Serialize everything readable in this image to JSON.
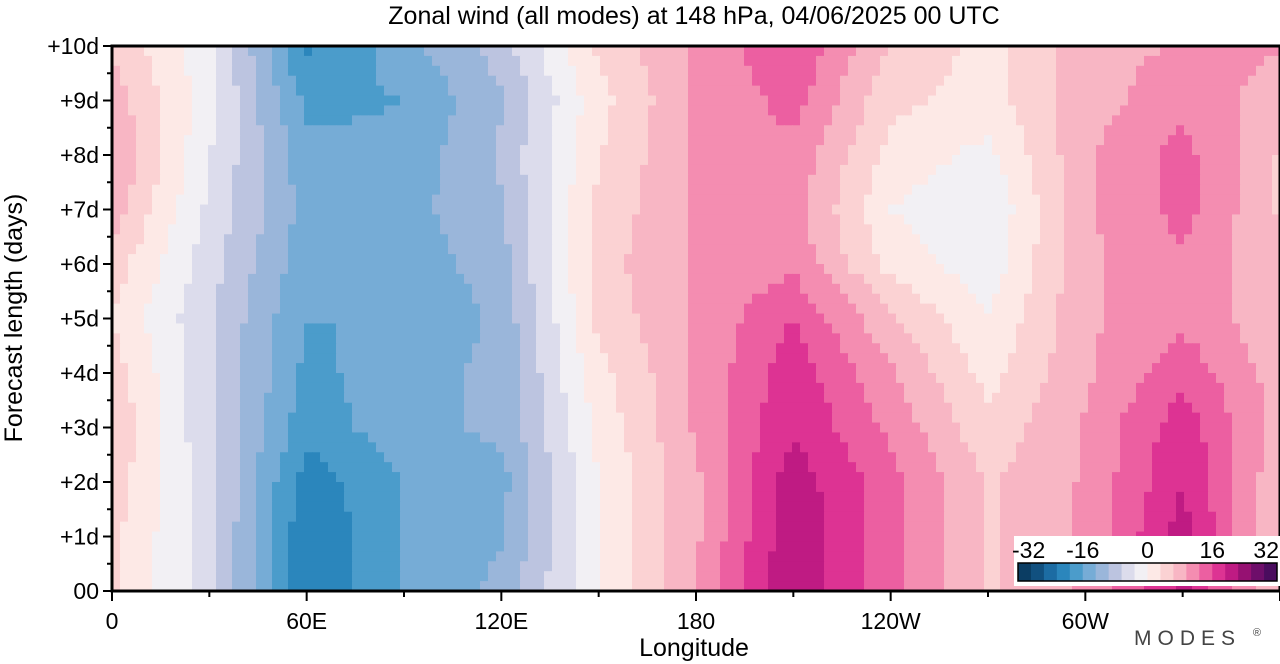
{
  "chart_data": {
    "type": "heatmap",
    "title": "Zonal wind (all modes) at 148 hPa,  04/06/2025  00 UTC",
    "xlabel": "Longitude",
    "ylabel": "Forecast length (days)",
    "x_ticks": [
      "0",
      "60E",
      "120E",
      "180",
      "120W",
      "60W"
    ],
    "y_ticks": [
      "00",
      "+1d",
      "+2d",
      "+3d",
      "+4d",
      "+5d",
      "+6d",
      "+7d",
      "+8d",
      "+9d",
      "+10d"
    ],
    "xlim": [
      0,
      360
    ],
    "ylim": [
      0,
      10
    ],
    "colorbar": {
      "ticks": [
        "-32",
        "-16",
        "0",
        "16",
        "32"
      ],
      "range": [
        -32,
        32
      ],
      "colors": [
        "#0b3d63",
        "#11507f",
        "#1c6ca3",
        "#2b86bc",
        "#4b9ccb",
        "#76acd6",
        "#9ab6da",
        "#bcc4e0",
        "#dcdcec",
        "#f2f0f4",
        "#fde9e6",
        "#fbd2d3",
        "#f8b6c4",
        "#f48db1",
        "#ec5fa1",
        "#dd3393",
        "#bf1b83",
        "#961172",
        "#6e0e6a",
        "#4a0c5e"
      ]
    },
    "x": [
      0,
      30,
      60,
      90,
      120,
      150,
      180,
      210,
      240,
      270,
      300,
      330,
      360
    ],
    "y": [
      0,
      1,
      2,
      3,
      4,
      5,
      6,
      7,
      8,
      9,
      10
    ],
    "z": [
      [
        4,
        -5,
        -22,
        -16,
        -12,
        0,
        10,
        22,
        14,
        6,
        10,
        20,
        6
      ],
      [
        4,
        -5,
        -22,
        -16,
        -13,
        0,
        9,
        22,
        14,
        6,
        10,
        21,
        6
      ],
      [
        5,
        -5,
        -21,
        -16,
        -14,
        0,
        9,
        21,
        14,
        6,
        10,
        19,
        7
      ],
      [
        6,
        -6,
        -18,
        -14,
        -12,
        1,
        10,
        19,
        12,
        4,
        10,
        18,
        8
      ],
      [
        5,
        -6,
        -17,
        -14,
        -12,
        2,
        10,
        18,
        10,
        2,
        9,
        15,
        8
      ],
      [
        3,
        -6,
        -16,
        -16,
        -12,
        4,
        10,
        16,
        7,
        0,
        9,
        12,
        7
      ],
      [
        5,
        -5,
        -15,
        -15,
        -11,
        5,
        10,
        12,
        2,
        -2,
        9,
        12,
        7
      ],
      [
        8,
        -4,
        -14,
        -14,
        -10,
        4,
        10,
        11,
        0,
        -3,
        9,
        14,
        6
      ],
      [
        10,
        -3,
        -15,
        -15,
        -9,
        3,
        10,
        12,
        2,
        -1,
        9,
        14,
        6
      ],
      [
        8,
        -2,
        -17,
        -16,
        -10,
        2,
        10,
        14,
        4,
        2,
        8,
        12,
        8
      ],
      [
        6,
        -2,
        -20,
        -14,
        -8,
        4,
        10,
        16,
        6,
        2,
        8,
        10,
        10
      ]
    ]
  },
  "branding": {
    "logo_text": "MODES",
    "logo_mark": "®"
  }
}
